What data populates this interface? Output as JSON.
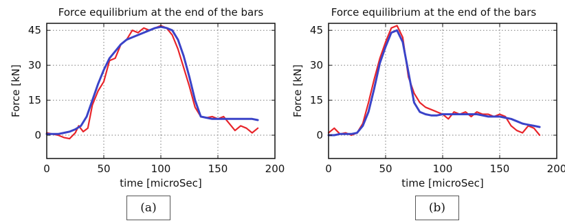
{
  "chart_data": [
    {
      "type": "line",
      "title": "Force equilibrium at the end of the bars",
      "xlabel": "time [microSec]",
      "ylabel": "Force [kN]",
      "xlim": [
        0,
        200
      ],
      "ylim": [
        -10,
        48
      ],
      "xticks": [
        "0",
        "50",
        "100",
        "150",
        "200"
      ],
      "yticks": [
        "0",
        "15",
        "30",
        "45"
      ],
      "grid": true,
      "caption": "(a)",
      "colors": [
        "#e8242a",
        "#3a43c8"
      ],
      "series": [
        {
          "x": [
            0,
            5,
            10,
            15,
            20,
            25,
            28,
            32,
            36,
            40,
            45,
            50,
            55,
            60,
            65,
            70,
            75,
            80,
            85,
            90,
            95,
            100,
            105,
            110,
            115,
            120,
            125,
            130,
            135,
            140,
            145,
            150,
            155,
            160,
            165,
            170,
            175,
            180,
            185
          ],
          "y": [
            1,
            0.5,
            0,
            -1,
            -1.5,
            1,
            4,
            1.5,
            3,
            13,
            19,
            23,
            32,
            33,
            39,
            41,
            45,
            44,
            46,
            45,
            46,
            47,
            46,
            43,
            37,
            29,
            21,
            12,
            8,
            7.5,
            8,
            7,
            8,
            5,
            2,
            4,
            3,
            1,
            3
          ]
        },
        {
          "x": [
            0,
            5,
            10,
            15,
            20,
            25,
            30,
            35,
            40,
            45,
            50,
            55,
            60,
            65,
            70,
            75,
            80,
            85,
            90,
            95,
            100,
            105,
            110,
            115,
            120,
            125,
            130,
            135,
            140,
            145,
            150,
            155,
            160,
            165,
            170,
            175,
            180,
            185
          ],
          "y": [
            0.5,
            0.5,
            0.5,
            1,
            1.5,
            2.5,
            4,
            8,
            15,
            22,
            28,
            33,
            36,
            39,
            41,
            42,
            43,
            44,
            45,
            46,
            46.5,
            46,
            45,
            41,
            34,
            25,
            15,
            8,
            7.5,
            7,
            7,
            7,
            7,
            7,
            7,
            7,
            7,
            6.5
          ]
        }
      ]
    },
    {
      "type": "line",
      "title": "Force equilibrium at the end of the bars",
      "xlabel": "time [microSec]",
      "ylabel": "Force [kN]",
      "xlim": [
        0,
        200
      ],
      "ylim": [
        -10,
        48
      ],
      "xticks": [
        "0",
        "50",
        "100",
        "150",
        "200"
      ],
      "yticks": [
        "0",
        "15",
        "30",
        "45"
      ],
      "grid": true,
      "caption": "(b)",
      "colors": [
        "#e8242a",
        "#3a43c8"
      ],
      "series": [
        {
          "x": [
            0,
            5,
            10,
            15,
            20,
            25,
            30,
            35,
            40,
            45,
            50,
            55,
            60,
            65,
            70,
            75,
            80,
            85,
            90,
            95,
            100,
            105,
            110,
            115,
            120,
            125,
            130,
            135,
            140,
            145,
            150,
            155,
            160,
            165,
            170,
            175,
            180,
            185
          ],
          "y": [
            1,
            3,
            0.5,
            1,
            0,
            1,
            5,
            14,
            24,
            33,
            40,
            46,
            47,
            42,
            25,
            18,
            14,
            12,
            11,
            10,
            9,
            7,
            10,
            9,
            10,
            8,
            10,
            9,
            9,
            8,
            9,
            8,
            4,
            2,
            1,
            4,
            3,
            0
          ]
        },
        {
          "x": [
            0,
            5,
            10,
            15,
            20,
            25,
            30,
            35,
            40,
            45,
            50,
            55,
            60,
            65,
            70,
            75,
            80,
            85,
            90,
            95,
            100,
            105,
            110,
            115,
            120,
            125,
            130,
            135,
            140,
            145,
            150,
            155,
            160,
            165,
            170,
            175,
            180,
            185
          ],
          "y": [
            0,
            0,
            0.5,
            0.5,
            0.5,
            1,
            4,
            10,
            20,
            31,
            38,
            44,
            45,
            40,
            27,
            14,
            10,
            9,
            8.5,
            8.5,
            9,
            9,
            9,
            9,
            9,
            9,
            9,
            8.5,
            8,
            8,
            8,
            7.5,
            7,
            6,
            5,
            4.5,
            4,
            3.5
          ]
        }
      ]
    }
  ]
}
